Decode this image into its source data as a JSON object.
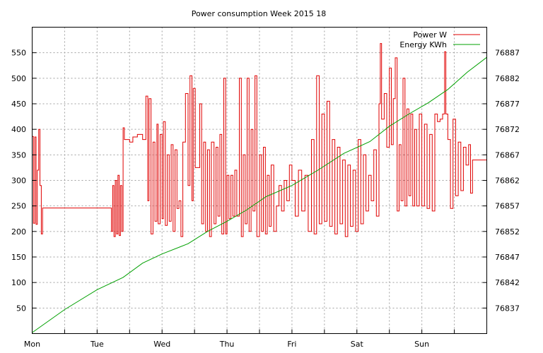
{
  "chart_data": {
    "type": "line",
    "title": "Power consumption Week 2015 18",
    "x_ticks": [
      "Mon",
      "Tue",
      "Wed",
      "Thu",
      "Fri",
      "Sat",
      "Sun"
    ],
    "x_range_days": [
      0,
      7
    ],
    "y_left": {
      "ticks": [
        50,
        100,
        150,
        200,
        250,
        300,
        350,
        400,
        450,
        500,
        550
      ],
      "range": [
        0,
        600
      ]
    },
    "y_right": {
      "ticks": [
        76837,
        76842,
        76847,
        76852,
        76857,
        76862,
        76867,
        76872,
        76877,
        76882,
        76887
      ],
      "range": [
        76832,
        76892
      ]
    },
    "grid": true,
    "legend_position": "top-right",
    "series": [
      {
        "name": "Power W",
        "axis": "left",
        "color": "#e00000",
        "points": [
          [
            0.0,
            386
          ],
          [
            0.02,
            216
          ],
          [
            0.04,
            385
          ],
          [
            0.06,
            214
          ],
          [
            0.08,
            320
          ],
          [
            0.1,
            400
          ],
          [
            0.12,
            290
          ],
          [
            0.14,
            195
          ],
          [
            0.16,
            246
          ],
          [
            1.2,
            246
          ],
          [
            1.22,
            200
          ],
          [
            1.24,
            290
          ],
          [
            1.26,
            190
          ],
          [
            1.28,
            300
          ],
          [
            1.3,
            195
          ],
          [
            1.32,
            310
          ],
          [
            1.34,
            192
          ],
          [
            1.36,
            290
          ],
          [
            1.38,
            200
          ],
          [
            1.4,
            403
          ],
          [
            1.42,
            380
          ],
          [
            1.5,
            375
          ],
          [
            1.55,
            385
          ],
          [
            1.62,
            390
          ],
          [
            1.7,
            380
          ],
          [
            1.75,
            465
          ],
          [
            1.78,
            260
          ],
          [
            1.8,
            460
          ],
          [
            1.83,
            195
          ],
          [
            1.86,
            375
          ],
          [
            1.89,
            220
          ],
          [
            1.92,
            410
          ],
          [
            1.94,
            215
          ],
          [
            1.97,
            390
          ],
          [
            2.0,
            225
          ],
          [
            2.02,
            415
          ],
          [
            2.05,
            212
          ],
          [
            2.08,
            350
          ],
          [
            2.11,
            220
          ],
          [
            2.14,
            370
          ],
          [
            2.17,
            200
          ],
          [
            2.2,
            360
          ],
          [
            2.23,
            245
          ],
          [
            2.26,
            260
          ],
          [
            2.29,
            190
          ],
          [
            2.32,
            375
          ],
          [
            2.36,
            470
          ],
          [
            2.4,
            290
          ],
          [
            2.43,
            505
          ],
          [
            2.46,
            260
          ],
          [
            2.48,
            480
          ],
          [
            2.51,
            325
          ],
          [
            2.55,
            325
          ],
          [
            2.58,
            450
          ],
          [
            2.61,
            215
          ],
          [
            2.64,
            375
          ],
          [
            2.67,
            200
          ],
          [
            2.7,
            360
          ],
          [
            2.73,
            190
          ],
          [
            2.76,
            375
          ],
          [
            2.8,
            215
          ],
          [
            2.83,
            365
          ],
          [
            2.86,
            230
          ],
          [
            2.89,
            390
          ],
          [
            2.92,
            195
          ],
          [
            2.95,
            500
          ],
          [
            2.98,
            195
          ],
          [
            3.0,
            310
          ],
          [
            3.03,
            225
          ],
          [
            3.06,
            310
          ],
          [
            3.09,
            230
          ],
          [
            3.12,
            320
          ],
          [
            3.15,
            230
          ],
          [
            3.19,
            500
          ],
          [
            3.22,
            190
          ],
          [
            3.25,
            350
          ],
          [
            3.28,
            215
          ],
          [
            3.31,
            500
          ],
          [
            3.34,
            200
          ],
          [
            3.37,
            400
          ],
          [
            3.4,
            240
          ],
          [
            3.43,
            505
          ],
          [
            3.46,
            190
          ],
          [
            3.5,
            350
          ],
          [
            3.53,
            200
          ],
          [
            3.56,
            365
          ],
          [
            3.59,
            195
          ],
          [
            3.62,
            310
          ],
          [
            3.65,
            210
          ],
          [
            3.68,
            330
          ],
          [
            3.72,
            200
          ],
          [
            3.76,
            250
          ],
          [
            3.8,
            290
          ],
          [
            3.84,
            240
          ],
          [
            3.88,
            300
          ],
          [
            3.92,
            260
          ],
          [
            3.96,
            330
          ],
          [
            4.0,
            300
          ],
          [
            4.05,
            230
          ],
          [
            4.1,
            320
          ],
          [
            4.15,
            240
          ],
          [
            4.2,
            310
          ],
          [
            4.25,
            200
          ],
          [
            4.3,
            380
          ],
          [
            4.34,
            195
          ],
          [
            4.38,
            505
          ],
          [
            4.42,
            215
          ],
          [
            4.46,
            430
          ],
          [
            4.5,
            220
          ],
          [
            4.54,
            455
          ],
          [
            4.58,
            210
          ],
          [
            4.62,
            380
          ],
          [
            4.66,
            195
          ],
          [
            4.7,
            365
          ],
          [
            4.74,
            215
          ],
          [
            4.78,
            340
          ],
          [
            4.82,
            190
          ],
          [
            4.86,
            330
          ],
          [
            4.9,
            210
          ],
          [
            4.94,
            320
          ],
          [
            4.98,
            200
          ],
          [
            5.02,
            380
          ],
          [
            5.06,
            215
          ],
          [
            5.1,
            350
          ],
          [
            5.14,
            240
          ],
          [
            5.18,
            310
          ],
          [
            5.22,
            260
          ],
          [
            5.26,
            360
          ],
          [
            5.3,
            230
          ],
          [
            5.34,
            450
          ],
          [
            5.36,
            568
          ],
          [
            5.38,
            420
          ],
          [
            5.42,
            470
          ],
          [
            5.46,
            365
          ],
          [
            5.5,
            520
          ],
          [
            5.53,
            370
          ],
          [
            5.56,
            460
          ],
          [
            5.59,
            540
          ],
          [
            5.62,
            240
          ],
          [
            5.65,
            370
          ],
          [
            5.68,
            260
          ],
          [
            5.71,
            500
          ],
          [
            5.74,
            250
          ],
          [
            5.77,
            440
          ],
          [
            5.8,
            270
          ],
          [
            5.83,
            430
          ],
          [
            5.86,
            250
          ],
          [
            5.89,
            400
          ],
          [
            5.92,
            250
          ],
          [
            5.96,
            430
          ],
          [
            6.0,
            250
          ],
          [
            6.04,
            410
          ],
          [
            6.08,
            245
          ],
          [
            6.12,
            390
          ],
          [
            6.16,
            240
          ],
          [
            6.2,
            430
          ],
          [
            6.24,
            415
          ],
          [
            6.28,
            420
          ],
          [
            6.32,
            430
          ],
          [
            6.35,
            552
          ],
          [
            6.37,
            430
          ],
          [
            6.4,
            380
          ],
          [
            6.44,
            245
          ],
          [
            6.48,
            420
          ],
          [
            6.52,
            270
          ],
          [
            6.56,
            375
          ],
          [
            6.6,
            280
          ],
          [
            6.64,
            365
          ],
          [
            6.68,
            330
          ],
          [
            6.72,
            370
          ],
          [
            6.75,
            275
          ],
          [
            6.78,
            340
          ],
          [
            7.0,
            370
          ]
        ]
      },
      {
        "name": "Energy KWh",
        "axis": "right",
        "color": "#00a000",
        "points": [
          [
            0.0,
            76832.2
          ],
          [
            0.5,
            76836.7
          ],
          [
            1.0,
            76840.6
          ],
          [
            1.4,
            76843.0
          ],
          [
            1.7,
            76845.8
          ],
          [
            2.0,
            76847.6
          ],
          [
            2.4,
            76849.6
          ],
          [
            2.7,
            76852.0
          ],
          [
            3.0,
            76854.0
          ],
          [
            3.3,
            76856.2
          ],
          [
            3.6,
            76858.8
          ],
          [
            4.0,
            76861.0
          ],
          [
            4.4,
            76864.0
          ],
          [
            4.8,
            76867.3
          ],
          [
            5.2,
            76869.6
          ],
          [
            5.5,
            76872.6
          ],
          [
            5.8,
            76875.0
          ],
          [
            6.1,
            76877.2
          ],
          [
            6.4,
            76879.8
          ],
          [
            6.7,
            76883.2
          ],
          [
            7.0,
            76886.1
          ]
        ]
      }
    ]
  }
}
